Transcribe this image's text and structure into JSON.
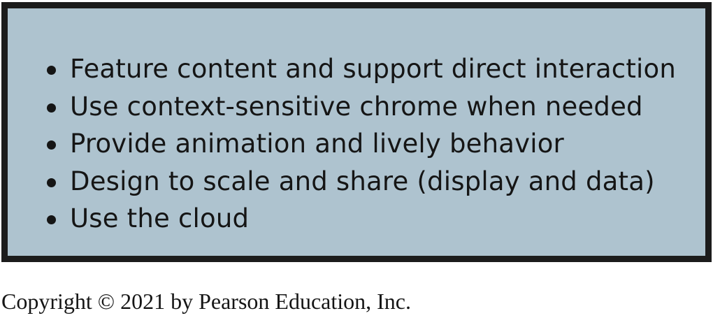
{
  "panel": {
    "bullets": [
      "Feature content and support direct interaction",
      "Use context-sensitive chrome when needed",
      "Provide animation and lively behavior",
      "Design to scale and share (display and data)",
      "Use the cloud"
    ]
  },
  "footer": {
    "copyright": "Copyright © 2021 by Pearson Education, Inc."
  },
  "colors": {
    "panel_background": "#aec3cf",
    "panel_border": "#1c1c1c",
    "text": "#151515"
  }
}
